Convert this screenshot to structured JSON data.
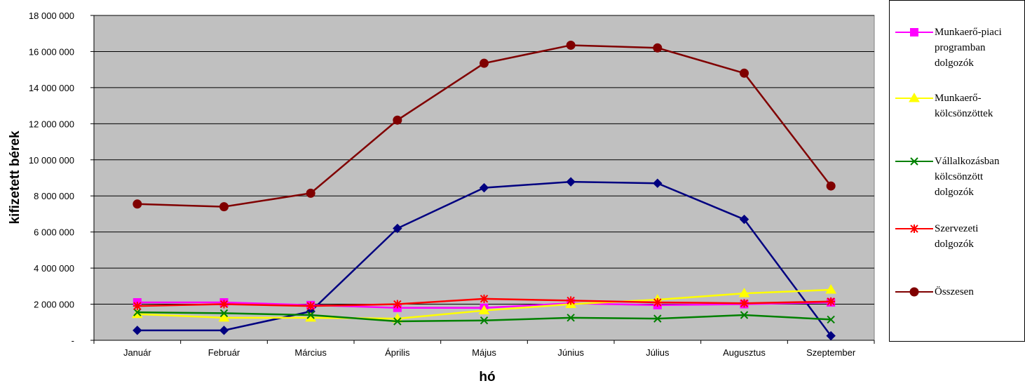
{
  "chart_data": {
    "type": "line",
    "title": "",
    "xlabel": "hó",
    "ylabel": "kifizetett bérek",
    "ylim": [
      0,
      18000000
    ],
    "y_ticks": [
      {
        "value": 0,
        "label": "-"
      },
      {
        "value": 2000000,
        "label": "2 000 000"
      },
      {
        "value": 4000000,
        "label": "4 000 000"
      },
      {
        "value": 6000000,
        "label": "6 000 000"
      },
      {
        "value": 8000000,
        "label": "8 000 000"
      },
      {
        "value": 10000000,
        "label": "10 000 000"
      },
      {
        "value": 12000000,
        "label": "12 000 000"
      },
      {
        "value": 14000000,
        "label": "14 000 000"
      },
      {
        "value": 16000000,
        "label": "16 000 000"
      },
      {
        "value": 18000000,
        "label": "18 000 000"
      }
    ],
    "grid": true,
    "legend_position": "right",
    "plot_background": "#c0c0c0",
    "categories": [
      "Január",
      "Február",
      "Március",
      "Április",
      "Május",
      "Június",
      "Július",
      "Augusztus",
      "Szeptember"
    ],
    "series": [
      {
        "name": "",
        "color": "#000080",
        "marker": "diamond",
        "values": [
          550000,
          550000,
          1600000,
          6200000,
          8450000,
          8780000,
          8700000,
          6700000,
          250000
        ]
      },
      {
        "name": "Munkaerő-piaci programban dolgozók",
        "color": "#ff00ff",
        "marker": "square",
        "values": [
          2100000,
          2100000,
          1950000,
          1800000,
          1800000,
          2050000,
          1950000,
          2000000,
          2100000
        ]
      },
      {
        "name": "Munkaerő-kölcsönzöttek",
        "color": "#ffff00",
        "marker": "triangle",
        "values": [
          1450000,
          1250000,
          1250000,
          1200000,
          1650000,
          2000000,
          2250000,
          2600000,
          2800000
        ]
      },
      {
        "name": "Vállalkozásban kölcsönzött dolgozók",
        "color": "#008000",
        "marker": "x",
        "values": [
          1550000,
          1500000,
          1400000,
          1050000,
          1100000,
          1250000,
          1200000,
          1400000,
          1150000
        ]
      },
      {
        "name": "Szervezeti dolgozók",
        "color": "#ff0000",
        "marker": "star",
        "values": [
          1900000,
          2000000,
          1900000,
          2000000,
          2300000,
          2200000,
          2100000,
          2050000,
          2150000
        ]
      },
      {
        "name": "Összesen",
        "color": "#800000",
        "marker": "circle",
        "values": [
          7550000,
          7400000,
          8150000,
          12200000,
          15350000,
          16350000,
          16200000,
          14800000,
          8550000
        ]
      }
    ],
    "legend_labels": [
      "Munkaerő-piaci\nprogramban\ndolgozók",
      "Munkaerő-\nkölcsönzöttek",
      "Vállalkozásban\nkölcsönzött\ndolgozók",
      "Szervezeti\ndolgozók",
      "Összesen"
    ]
  }
}
